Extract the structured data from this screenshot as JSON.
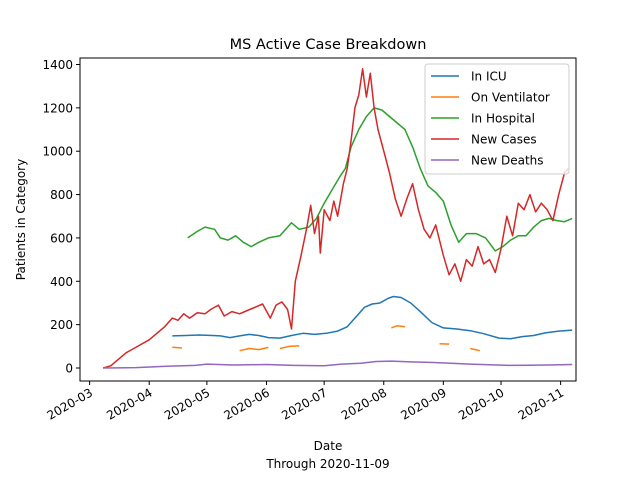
{
  "chart_data": {
    "type": "line",
    "title": "MS Active Case Breakdown",
    "xlabel": "Date",
    "xsublabel": "Through 2020-11-09",
    "ylabel": "Patients in Category",
    "xlim": [
      "2020-02-25",
      "2020-11-09"
    ],
    "ylim": [
      -60,
      1430
    ],
    "yticks": [
      0,
      200,
      400,
      600,
      800,
      1000,
      1200,
      1400
    ],
    "xticks": [
      "2020-03",
      "2020-04",
      "2020-05",
      "2020-06",
      "2020-07",
      "2020-08",
      "2020-09",
      "2020-10",
      "2020-11"
    ],
    "xtick_dates": [
      "2020-03-01",
      "2020-04-01",
      "2020-05-01",
      "2020-06-01",
      "2020-07-01",
      "2020-08-01",
      "2020-09-01",
      "2020-10-01",
      "2020-11-01"
    ],
    "legend_position": "upper-right",
    "grid": false,
    "series": [
      {
        "name": "In ICU",
        "color": "#1f77b4",
        "points": [
          [
            "2020-04-13",
            148
          ],
          [
            "2020-04-20",
            150
          ],
          [
            "2020-04-27",
            152
          ],
          [
            "2020-05-04",
            150
          ],
          [
            "2020-05-08",
            148
          ],
          [
            "2020-05-13",
            140
          ],
          [
            "2020-05-18",
            148
          ],
          [
            "2020-05-23",
            155
          ],
          [
            "2020-05-28",
            150
          ],
          [
            "2020-06-02",
            140
          ],
          [
            "2020-06-08",
            138
          ],
          [
            "2020-06-14",
            150
          ],
          [
            "2020-06-20",
            160
          ],
          [
            "2020-06-26",
            155
          ],
          [
            "2020-07-02",
            160
          ],
          [
            "2020-07-08",
            170
          ],
          [
            "2020-07-13",
            190
          ],
          [
            "2020-07-18",
            240
          ],
          [
            "2020-07-22",
            280
          ],
          [
            "2020-07-26",
            295
          ],
          [
            "2020-07-30",
            300
          ],
          [
            "2020-08-03",
            320
          ],
          [
            "2020-08-06",
            330
          ],
          [
            "2020-08-10",
            325
          ],
          [
            "2020-08-15",
            300
          ],
          [
            "2020-08-20",
            260
          ],
          [
            "2020-08-26",
            210
          ],
          [
            "2020-09-01",
            185
          ],
          [
            "2020-09-08",
            180
          ],
          [
            "2020-09-15",
            172
          ],
          [
            "2020-09-22",
            158
          ],
          [
            "2020-09-30",
            138
          ],
          [
            "2020-10-06",
            135
          ],
          [
            "2020-10-12",
            145
          ],
          [
            "2020-10-18",
            150
          ],
          [
            "2020-10-24",
            162
          ],
          [
            "2020-10-31",
            170
          ],
          [
            "2020-11-07",
            175
          ]
        ]
      },
      {
        "name": "On Ventilator",
        "color": "#ff7f0e",
        "gap_after_days": 5,
        "points": [
          [
            "2020-04-13",
            96
          ],
          [
            "2020-04-18",
            92
          ],
          [
            "2020-04-24",
            78
          ],
          [
            "2020-04-30",
            72
          ],
          [
            "2020-05-06",
            75
          ],
          [
            "2020-05-12",
            72
          ],
          [
            "2020-05-18",
            80
          ],
          [
            "2020-05-23",
            90
          ],
          [
            "2020-05-28",
            85
          ],
          [
            "2020-06-02",
            95
          ],
          [
            "2020-06-08",
            90
          ],
          [
            "2020-06-13",
            100
          ],
          [
            "2020-06-18",
            102
          ],
          [
            "2020-06-24",
            95
          ],
          [
            "2020-06-30",
            90
          ],
          [
            "2020-07-06",
            95
          ],
          [
            "2020-07-12",
            110
          ],
          [
            "2020-07-18",
            130
          ],
          [
            "2020-07-24",
            150
          ],
          [
            "2020-07-30",
            170
          ],
          [
            "2020-08-05",
            185
          ],
          [
            "2020-08-08",
            195
          ],
          [
            "2020-08-12",
            190
          ],
          [
            "2020-08-18",
            165
          ],
          [
            "2020-08-24",
            120
          ],
          [
            "2020-08-30",
            112
          ],
          [
            "2020-09-04",
            110
          ],
          [
            "2020-09-15",
            90
          ],
          [
            "2020-09-20",
            80
          ],
          [
            "2020-09-26",
            70
          ],
          [
            "2020-10-02",
            68
          ],
          [
            "2020-10-08",
            62
          ],
          [
            "2020-10-14",
            66
          ],
          [
            "2020-10-20",
            70
          ],
          [
            "2020-10-26",
            68
          ],
          [
            "2020-11-01",
            75
          ],
          [
            "2020-11-07",
            76
          ]
        ]
      },
      {
        "name": "In Hospital",
        "color": "#2ca02c",
        "points": [
          [
            "2020-04-21",
            600
          ],
          [
            "2020-04-26",
            630
          ],
          [
            "2020-04-30",
            650
          ],
          [
            "2020-05-05",
            640
          ],
          [
            "2020-05-08",
            600
          ],
          [
            "2020-05-12",
            590
          ],
          [
            "2020-05-16",
            610
          ],
          [
            "2020-05-20",
            580
          ],
          [
            "2020-05-24",
            560
          ],
          [
            "2020-05-28",
            580
          ],
          [
            "2020-06-02",
            600
          ],
          [
            "2020-06-08",
            610
          ],
          [
            "2020-06-14",
            670
          ],
          [
            "2020-06-18",
            640
          ],
          [
            "2020-06-23",
            650
          ],
          [
            "2020-06-27",
            690
          ],
          [
            "2020-07-01",
            760
          ],
          [
            "2020-07-05",
            820
          ],
          [
            "2020-07-09",
            880
          ],
          [
            "2020-07-12",
            920
          ],
          [
            "2020-07-15",
            1020
          ],
          [
            "2020-07-19",
            1100
          ],
          [
            "2020-07-23",
            1160
          ],
          [
            "2020-07-27",
            1200
          ],
          [
            "2020-07-31",
            1190
          ],
          [
            "2020-08-04",
            1160
          ],
          [
            "2020-08-08",
            1130
          ],
          [
            "2020-08-12",
            1100
          ],
          [
            "2020-08-16",
            1020
          ],
          [
            "2020-08-20",
            920
          ],
          [
            "2020-08-24",
            840
          ],
          [
            "2020-08-28",
            810
          ],
          [
            "2020-09-01",
            770
          ],
          [
            "2020-09-05",
            660
          ],
          [
            "2020-09-09",
            580
          ],
          [
            "2020-09-13",
            620
          ],
          [
            "2020-09-18",
            620
          ],
          [
            "2020-09-23",
            600
          ],
          [
            "2020-09-28",
            540
          ],
          [
            "2020-10-02",
            560
          ],
          [
            "2020-10-06",
            590
          ],
          [
            "2020-10-10",
            610
          ],
          [
            "2020-10-14",
            610
          ],
          [
            "2020-10-18",
            650
          ],
          [
            "2020-10-22",
            680
          ],
          [
            "2020-10-26",
            690
          ],
          [
            "2020-10-30",
            680
          ],
          [
            "2020-11-03",
            675
          ],
          [
            "2020-11-07",
            690
          ]
        ]
      },
      {
        "name": "New Cases",
        "color": "#d62728",
        "points": [
          [
            "2020-03-08",
            0
          ],
          [
            "2020-03-12",
            10
          ],
          [
            "2020-03-16",
            40
          ],
          [
            "2020-03-20",
            70
          ],
          [
            "2020-03-24",
            90
          ],
          [
            "2020-03-28",
            110
          ],
          [
            "2020-04-01",
            130
          ],
          [
            "2020-04-05",
            160
          ],
          [
            "2020-04-09",
            190
          ],
          [
            "2020-04-13",
            230
          ],
          [
            "2020-04-16",
            220
          ],
          [
            "2020-04-19",
            250
          ],
          [
            "2020-04-22",
            230
          ],
          [
            "2020-04-26",
            255
          ],
          [
            "2020-04-30",
            250
          ],
          [
            "2020-05-03",
            270
          ],
          [
            "2020-05-07",
            290
          ],
          [
            "2020-05-10",
            240
          ],
          [
            "2020-05-14",
            260
          ],
          [
            "2020-05-18",
            250
          ],
          [
            "2020-05-22",
            265
          ],
          [
            "2020-05-26",
            280
          ],
          [
            "2020-05-30",
            295
          ],
          [
            "2020-06-03",
            230
          ],
          [
            "2020-06-06",
            290
          ],
          [
            "2020-06-09",
            305
          ],
          [
            "2020-06-12",
            270
          ],
          [
            "2020-06-14",
            180
          ],
          [
            "2020-06-16",
            400
          ],
          [
            "2020-06-19",
            520
          ],
          [
            "2020-06-22",
            650
          ],
          [
            "2020-06-24",
            750
          ],
          [
            "2020-06-26",
            620
          ],
          [
            "2020-06-28",
            700
          ],
          [
            "2020-06-29",
            530
          ],
          [
            "2020-07-01",
            730
          ],
          [
            "2020-07-04",
            680
          ],
          [
            "2020-07-06",
            770
          ],
          [
            "2020-07-08",
            700
          ],
          [
            "2020-07-11",
            850
          ],
          [
            "2020-07-13",
            920
          ],
          [
            "2020-07-15",
            1050
          ],
          [
            "2020-07-17",
            1200
          ],
          [
            "2020-07-19",
            1260
          ],
          [
            "2020-07-21",
            1380
          ],
          [
            "2020-07-23",
            1250
          ],
          [
            "2020-07-25",
            1360
          ],
          [
            "2020-07-27",
            1200
          ],
          [
            "2020-07-29",
            1100
          ],
          [
            "2020-08-01",
            1000
          ],
          [
            "2020-08-04",
            900
          ],
          [
            "2020-08-07",
            780
          ],
          [
            "2020-08-10",
            700
          ],
          [
            "2020-08-13",
            780
          ],
          [
            "2020-08-16",
            850
          ],
          [
            "2020-08-19",
            730
          ],
          [
            "2020-08-22",
            640
          ],
          [
            "2020-08-25",
            600
          ],
          [
            "2020-08-28",
            660
          ],
          [
            "2020-09-01",
            520
          ],
          [
            "2020-09-04",
            430
          ],
          [
            "2020-09-07",
            480
          ],
          [
            "2020-09-10",
            400
          ],
          [
            "2020-09-13",
            500
          ],
          [
            "2020-09-16",
            470
          ],
          [
            "2020-09-19",
            560
          ],
          [
            "2020-09-22",
            480
          ],
          [
            "2020-09-25",
            500
          ],
          [
            "2020-09-28",
            440
          ],
          [
            "2020-10-01",
            550
          ],
          [
            "2020-10-04",
            700
          ],
          [
            "2020-10-07",
            610
          ],
          [
            "2020-10-10",
            760
          ],
          [
            "2020-10-13",
            730
          ],
          [
            "2020-10-16",
            800
          ],
          [
            "2020-10-19",
            720
          ],
          [
            "2020-10-22",
            760
          ],
          [
            "2020-10-25",
            730
          ],
          [
            "2020-10-28",
            680
          ],
          [
            "2020-10-31",
            800
          ],
          [
            "2020-11-03",
            900
          ],
          [
            "2020-11-05",
            920
          ]
        ]
      },
      {
        "name": "New Deaths",
        "color": "#9467bd",
        "points": [
          [
            "2020-03-08",
            0
          ],
          [
            "2020-03-25",
            2
          ],
          [
            "2020-04-10",
            8
          ],
          [
            "2020-04-25",
            12
          ],
          [
            "2020-05-01",
            18
          ],
          [
            "2020-05-15",
            14
          ],
          [
            "2020-06-01",
            16
          ],
          [
            "2020-06-15",
            12
          ],
          [
            "2020-07-01",
            10
          ],
          [
            "2020-07-10",
            18
          ],
          [
            "2020-07-20",
            22
          ],
          [
            "2020-07-28",
            30
          ],
          [
            "2020-08-05",
            32
          ],
          [
            "2020-08-15",
            28
          ],
          [
            "2020-08-25",
            26
          ],
          [
            "2020-09-05",
            22
          ],
          [
            "2020-09-15",
            18
          ],
          [
            "2020-09-25",
            15
          ],
          [
            "2020-10-05",
            12
          ],
          [
            "2020-10-15",
            13
          ],
          [
            "2020-10-25",
            14
          ],
          [
            "2020-11-07",
            16
          ]
        ]
      }
    ]
  }
}
